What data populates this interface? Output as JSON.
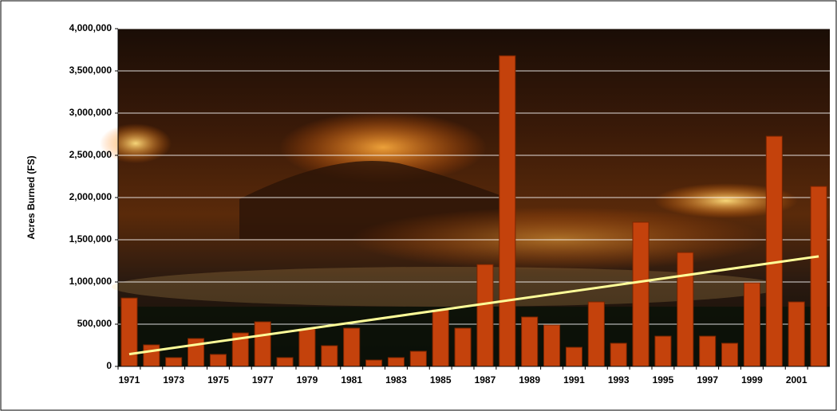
{
  "chart_data": {
    "type": "bar",
    "y_label": "Acres Burned (FS)",
    "categories": [
      "1971",
      null,
      "1973",
      null,
      "1975",
      null,
      "1977",
      null,
      "1979",
      null,
      "1981",
      null,
      "1983",
      null,
      "1985",
      null,
      "1987",
      null,
      "1989",
      null,
      "1991",
      null,
      "1993",
      null,
      "1995",
      null,
      "1997",
      null,
      "1999",
      null,
      "2001",
      null
    ],
    "values": [
      810000,
      255000,
      104000,
      330000,
      142000,
      396000,
      528000,
      104000,
      443000,
      245000,
      453000,
      75000,
      104000,
      179000,
      670000,
      453000,
      1207000,
      3679000,
      585000,
      490000,
      226000,
      764000,
      274000,
      1708000,
      358000,
      1349000,
      358000,
      274000,
      990000,
      2726000,
      764000,
      2132000
    ],
    "color": "#c4420c",
    "ylim": [
      0,
      4000000
    ],
    "yticks": [
      0,
      {
        "value": 500000,
        "label": "500,000"
      },
      {
        "value": 1000000,
        "label": "1,000,000"
      },
      {
        "value": 1500000,
        "label": "1,500,000"
      },
      {
        "value": 2000000,
        "label": "2,000,000"
      },
      {
        "value": 2500000,
        "label": "2,500,000"
      },
      {
        "value": 3000000,
        "label": "3,000,000"
      },
      {
        "value": 3500000,
        "label": "3,500,000"
      },
      {
        "value": 4000000,
        "label": "4,000,000"
      }
    ],
    "grid": true,
    "trendline": true,
    "trendline_color": "#ffff99"
  }
}
